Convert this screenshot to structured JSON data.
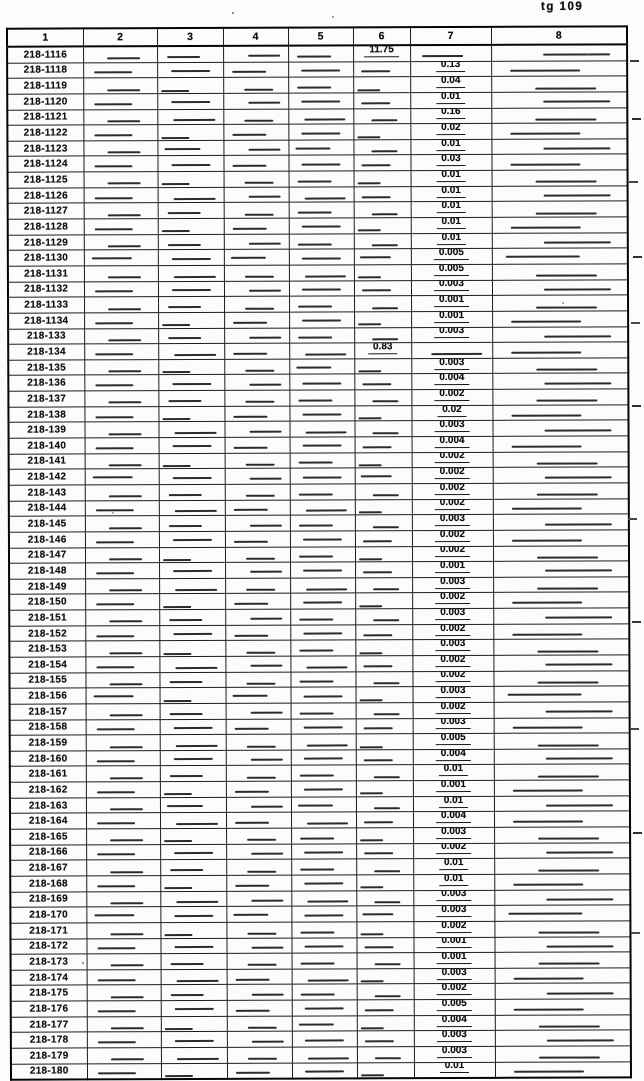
{
  "page": {
    "stamp": "tg 109"
  },
  "table": {
    "columns": [
      "1",
      "2",
      "3",
      "4",
      "5",
      "6",
      "7",
      "8"
    ],
    "rows": [
      {
        "col1": "218-1116",
        "col6": "11.75"
      },
      {
        "col1": "218-1118",
        "col7": "0.13"
      },
      {
        "col1": "218-1119",
        "col7": "0.04"
      },
      {
        "col1": "218-1120",
        "col7": "0.01"
      },
      {
        "col1": "218-1121",
        "col7": "0.16"
      },
      {
        "col1": "218-1122",
        "col7": "0.02"
      },
      {
        "col1": "218-1123",
        "col7": "0.01"
      },
      {
        "col1": "218-1124",
        "col7": "0.03"
      },
      {
        "col1": "218-1125",
        "col7": "0.01"
      },
      {
        "col1": "218-1126",
        "col7": "0.01"
      },
      {
        "col1": "218-1127",
        "col7": "0.01"
      },
      {
        "col1": "218-1128",
        "col7": "0.01"
      },
      {
        "col1": "218-1129",
        "col7": "0.01"
      },
      {
        "col1": "218-1130",
        "col7": "0.005"
      },
      {
        "col1": "218-1131",
        "col7": "0.005"
      },
      {
        "col1": "218-1132",
        "col7": "0.003"
      },
      {
        "col1": "218-1133",
        "col7": "0.001"
      },
      {
        "col1": "218-1134",
        "col7": "0.001"
      },
      {
        "col1": "218-133",
        "col7": "0.003"
      },
      {
        "col1": "218-134",
        "col6": "0.83"
      },
      {
        "col1": "218-135",
        "col7": "0.003"
      },
      {
        "col1": "218-136",
        "col7": "0.004"
      },
      {
        "col1": "218-137",
        "col7": "0.002"
      },
      {
        "col1": "218-138",
        "col7": "0.02"
      },
      {
        "col1": "218-139",
        "col7": "0.003"
      },
      {
        "col1": "218-140",
        "col7": "0.004"
      },
      {
        "col1": "218-141",
        "col7": "0.002"
      },
      {
        "col1": "218-142",
        "col7": "0.002"
      },
      {
        "col1": "218-143",
        "col7": "0.002"
      },
      {
        "col1": "218-144",
        "col7": "0.002"
      },
      {
        "col1": "218-145",
        "col7": "0.003"
      },
      {
        "col1": "218-146",
        "col7": "0.002"
      },
      {
        "col1": "218-147",
        "col7": "0.002"
      },
      {
        "col1": "218-148",
        "col7": "0.001"
      },
      {
        "col1": "218-149",
        "col7": "0.003"
      },
      {
        "col1": "218-150",
        "col7": "0.002"
      },
      {
        "col1": "218-151",
        "col7": "0.003"
      },
      {
        "col1": "218-152",
        "col7": "0.002"
      },
      {
        "col1": "218-153",
        "col7": "0.003"
      },
      {
        "col1": "218-154",
        "col7": "0.002"
      },
      {
        "col1": "218-155",
        "col7": "0.002"
      },
      {
        "col1": "218-156",
        "col7": "0.003"
      },
      {
        "col1": "218-157",
        "col7": "0.002"
      },
      {
        "col1": "218-158",
        "col7": "0.003"
      },
      {
        "col1": "218-159",
        "col7": "0.005"
      },
      {
        "col1": "218-160",
        "col7": "0.004"
      },
      {
        "col1": "218-161",
        "col7": "0.01"
      },
      {
        "col1": "218-162",
        "col7": "0.001"
      },
      {
        "col1": "218-163",
        "col7": "0.01"
      },
      {
        "col1": "218-164",
        "col7": "0.004"
      },
      {
        "col1": "218-165",
        "col7": "0.003"
      },
      {
        "col1": "218-166",
        "col7": "0.002"
      },
      {
        "col1": "218-167",
        "col7": "0.01"
      },
      {
        "col1": "218-168",
        "col7": "0.01"
      },
      {
        "col1": "218-169",
        "col7": "0.003"
      },
      {
        "col1": "218-170",
        "col7": "0.003"
      },
      {
        "col1": "218-171",
        "col7": "0.002"
      },
      {
        "col1": "218-172",
        "col7": "0.001"
      },
      {
        "col1": "218-173",
        "col7": "0.001"
      },
      {
        "col1": "218-174",
        "col7": "0.003"
      },
      {
        "col1": "218-175",
        "col7": "0.002"
      },
      {
        "col1": "218-176",
        "col7": "0.005"
      },
      {
        "col1": "218-177",
        "col7": "0.004"
      },
      {
        "col1": "218-178",
        "col7": "0.003"
      },
      {
        "col1": "218-179",
        "col7": "0.003"
      },
      {
        "col1": "218-180",
        "col7": "0.01"
      }
    ]
  }
}
